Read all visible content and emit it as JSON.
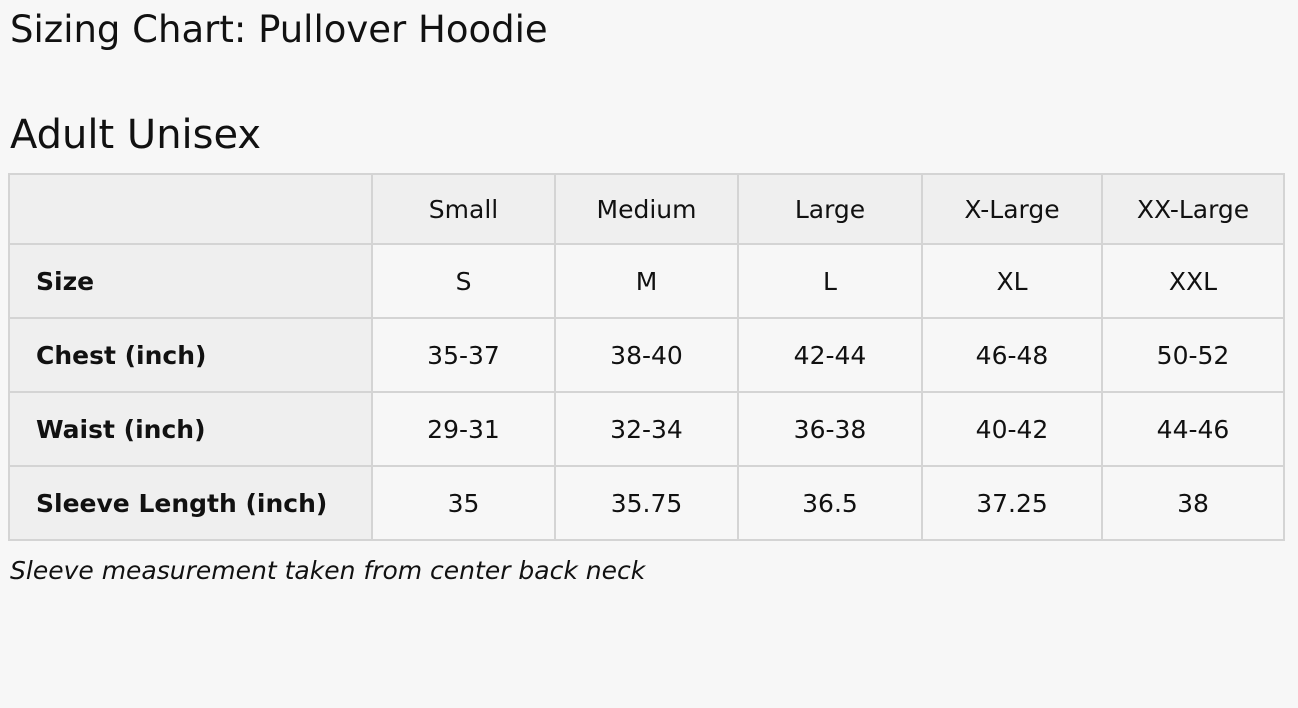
{
  "title": "Sizing Chart: Pullover Hoodie",
  "subtitle": "Adult Unisex",
  "table": {
    "columns": [
      "Small",
      "Medium",
      "Large",
      "X-Large",
      "XX-Large"
    ],
    "rows": [
      {
        "label": "Size",
        "values": [
          "S",
          "M",
          "L",
          "XL",
          "XXL"
        ]
      },
      {
        "label": "Chest (inch)",
        "values": [
          "35-37",
          "38-40",
          "42-44",
          "46-48",
          "50-52"
        ]
      },
      {
        "label": "Waist (inch)",
        "values": [
          "29-31",
          "32-34",
          "36-38",
          "40-42",
          "44-46"
        ]
      },
      {
        "label": "Sleeve Length (inch)",
        "values": [
          "35",
          "35.75",
          "36.5",
          "37.25",
          "38"
        ]
      }
    ]
  },
  "note": "Sleeve measurement taken from center back neck",
  "colors": {
    "background": "#f7f7f7",
    "header_cell": "#efefef",
    "border": "#d4d4d4"
  }
}
